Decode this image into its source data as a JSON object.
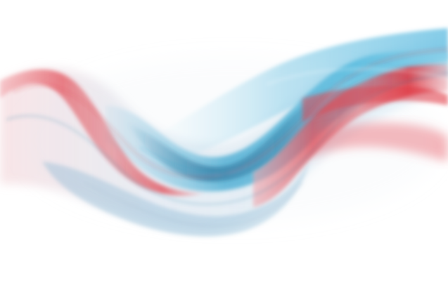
{
  "image": {
    "subject": "abstract-smoke-wave",
    "background_color": "#ffffff",
    "palette": {
      "red": "#e0303a",
      "red_light": "#f2a0a6",
      "blue": "#2aa0cc",
      "blue_light": "#8fd2ea",
      "blue_dark": "#1b6f9a",
      "haze": "#dfe7f0"
    }
  }
}
